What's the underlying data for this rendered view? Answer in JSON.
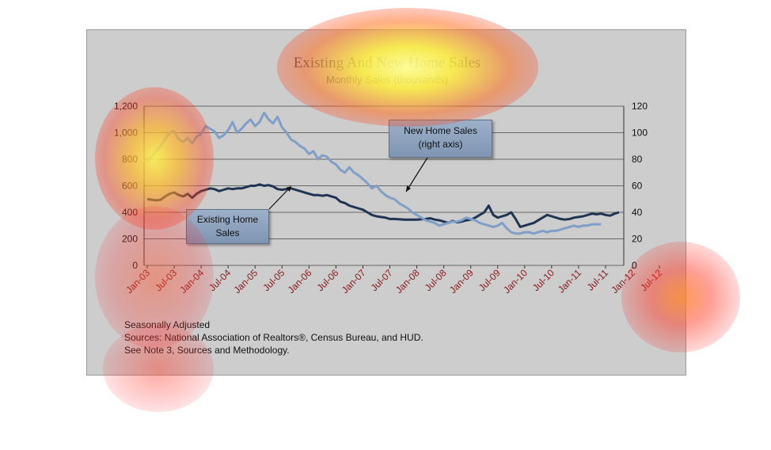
{
  "chart_data": {
    "type": "line",
    "title": "Existing And New Home Sales",
    "subtitle": "Monthly Sales (thousands)",
    "notes": [
      "Seasonally Adjusted",
      "Sources:  National Association of Realtors®, Census Bureau, and HUD.",
      "See Note 3, Sources and Methodology."
    ],
    "x_tick_labels": [
      "Jan-03",
      "Jul-03",
      "Jan-04",
      "Jul-04",
      "Jan-05",
      "Jul-05",
      "Jan-06",
      "Jul-06",
      "Jan-07",
      "Jul-07",
      "Jan-08",
      "Jul-08",
      "Jan-09",
      "Jul-09",
      "Jan-10",
      "Jul-10",
      "Jan-11",
      "Jul-11",
      "Jan-12",
      "Jul-12"
    ],
    "ylim_left": [
      0,
      1200
    ],
    "yticks_left": [
      "0",
      "200",
      "400",
      "600",
      "800",
      "1,000",
      "1,200"
    ],
    "ylim_right": [
      0,
      120
    ],
    "yticks_right": [
      "0",
      "20",
      "40",
      "60",
      "80",
      "100",
      "120"
    ],
    "grid": "horizontal",
    "annotations": [
      {
        "text": "New Home Sales\n(right axis)",
        "line1": "New Home Sales",
        "line2": "(right axis)"
      },
      {
        "text": "Existing Home\nSales",
        "line1": "Existing Home",
        "line2": "Sales"
      }
    ],
    "series": [
      {
        "axis": "left",
        "color": "#1f3553",
        "values": [
          500,
          495,
          490,
          495,
          520,
          540,
          550,
          530,
          520,
          540,
          510,
          540,
          560,
          570,
          580,
          575,
          560,
          570,
          580,
          575,
          580,
          580,
          590,
          600,
          600,
          610,
          600,
          605,
          595,
          575,
          570,
          575,
          580,
          570,
          560,
          550,
          540,
          530,
          530,
          525,
          530,
          520,
          510,
          480,
          470,
          450,
          440,
          430,
          420,
          400,
          380,
          370,
          365,
          360,
          350,
          350,
          348,
          345,
          345,
          345,
          345,
          348,
          350,
          355,
          345,
          340,
          330,
          320,
          335,
          325,
          330,
          340,
          345,
          360,
          380,
          400,
          450,
          380,
          360,
          370,
          380,
          400,
          350,
          290,
          300,
          310,
          320,
          340,
          360,
          380,
          370,
          360,
          350,
          345,
          350,
          360,
          365,
          370,
          380,
          390,
          385,
          390,
          380,
          375,
          390,
          400
        ]
      },
      {
        "axis": "right",
        "color": "#7f9fc8",
        "values": [
          79,
          82,
          86,
          90,
          95,
          100,
          101,
          95,
          93,
          96,
          92,
          97,
          99,
          105,
          103,
          101,
          96,
          98,
          102,
          108,
          100,
          103,
          107,
          110,
          105,
          108,
          115,
          110,
          107,
          112,
          104,
          100,
          95,
          93,
          90,
          88,
          84,
          86,
          80,
          83,
          82,
          78,
          76,
          72,
          70,
          74,
          70,
          68,
          65,
          62,
          58,
          60,
          56,
          53,
          51,
          50,
          47,
          45,
          43,
          40,
          38,
          36,
          34,
          33,
          32,
          30,
          31,
          32,
          33,
          33,
          34,
          36,
          35,
          34,
          32,
          31,
          30,
          29,
          30,
          32,
          28,
          25,
          24,
          24,
          25,
          25,
          24,
          25,
          26,
          25,
          26,
          26,
          27,
          28,
          29,
          30,
          29,
          30,
          30,
          31,
          31,
          31
        ]
      }
    ]
  }
}
